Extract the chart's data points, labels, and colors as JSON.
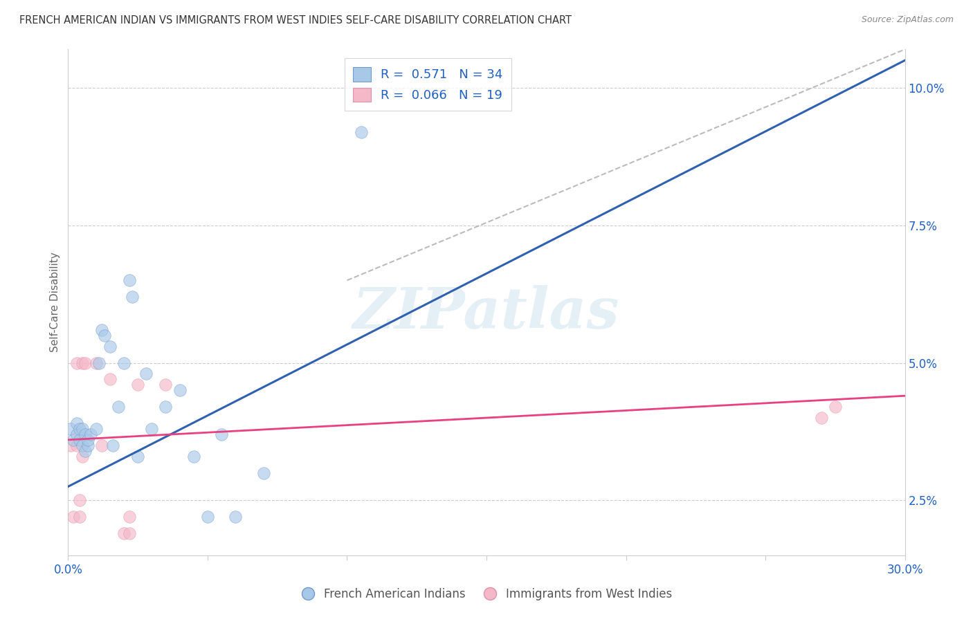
{
  "title": "FRENCH AMERICAN INDIAN VS IMMIGRANTS FROM WEST INDIES SELF-CARE DISABILITY CORRELATION CHART",
  "source": "Source: ZipAtlas.com",
  "ylabel": "Self-Care Disability",
  "ylabel_right_ticks": [
    "2.5%",
    "5.0%",
    "7.5%",
    "10.0%"
  ],
  "ylabel_right_vals": [
    0.025,
    0.05,
    0.075,
    0.1
  ],
  "xlim": [
    0.0,
    0.3
  ],
  "ylim": [
    0.015,
    0.107
  ],
  "blue_color": "#a8c8e8",
  "pink_color": "#f4b8c8",
  "blue_line_color": "#3060b0",
  "pink_line_color": "#e84080",
  "r_n_color": "#2060c0",
  "blue_scatter_x": [
    0.001,
    0.002,
    0.003,
    0.003,
    0.004,
    0.004,
    0.005,
    0.005,
    0.006,
    0.006,
    0.007,
    0.007,
    0.008,
    0.01,
    0.011,
    0.012,
    0.013,
    0.015,
    0.016,
    0.018,
    0.02,
    0.022,
    0.023,
    0.025,
    0.028,
    0.03,
    0.035,
    0.04,
    0.045,
    0.05,
    0.055,
    0.06,
    0.07,
    0.105
  ],
  "blue_scatter_y": [
    0.038,
    0.036,
    0.037,
    0.039,
    0.036,
    0.038,
    0.035,
    0.038,
    0.034,
    0.037,
    0.035,
    0.036,
    0.037,
    0.038,
    0.05,
    0.056,
    0.055,
    0.053,
    0.035,
    0.042,
    0.05,
    0.065,
    0.062,
    0.033,
    0.048,
    0.038,
    0.042,
    0.045,
    0.033,
    0.022,
    0.037,
    0.022,
    0.03,
    0.092
  ],
  "pink_scatter_x": [
    0.001,
    0.002,
    0.003,
    0.003,
    0.004,
    0.004,
    0.005,
    0.005,
    0.006,
    0.01,
    0.012,
    0.015,
    0.02,
    0.022,
    0.022,
    0.025,
    0.035,
    0.27,
    0.275
  ],
  "pink_scatter_y": [
    0.035,
    0.022,
    0.035,
    0.05,
    0.022,
    0.025,
    0.05,
    0.033,
    0.05,
    0.05,
    0.035,
    0.047,
    0.019,
    0.019,
    0.022,
    0.046,
    0.046,
    0.04,
    0.042
  ],
  "blue_line_x0": 0.0,
  "blue_line_y0": 0.0275,
  "blue_line_x1": 0.3,
  "blue_line_y1": 0.105,
  "pink_line_x0": 0.0,
  "pink_line_y0": 0.036,
  "pink_line_x1": 0.3,
  "pink_line_y1": 0.044,
  "ref_line_x0": 0.1,
  "ref_line_y0": 0.065,
  "ref_line_x1": 0.3,
  "ref_line_y1": 0.107,
  "watermark_text": "ZIPatlas",
  "grid_color": "#cccccc",
  "background_color": "#ffffff"
}
